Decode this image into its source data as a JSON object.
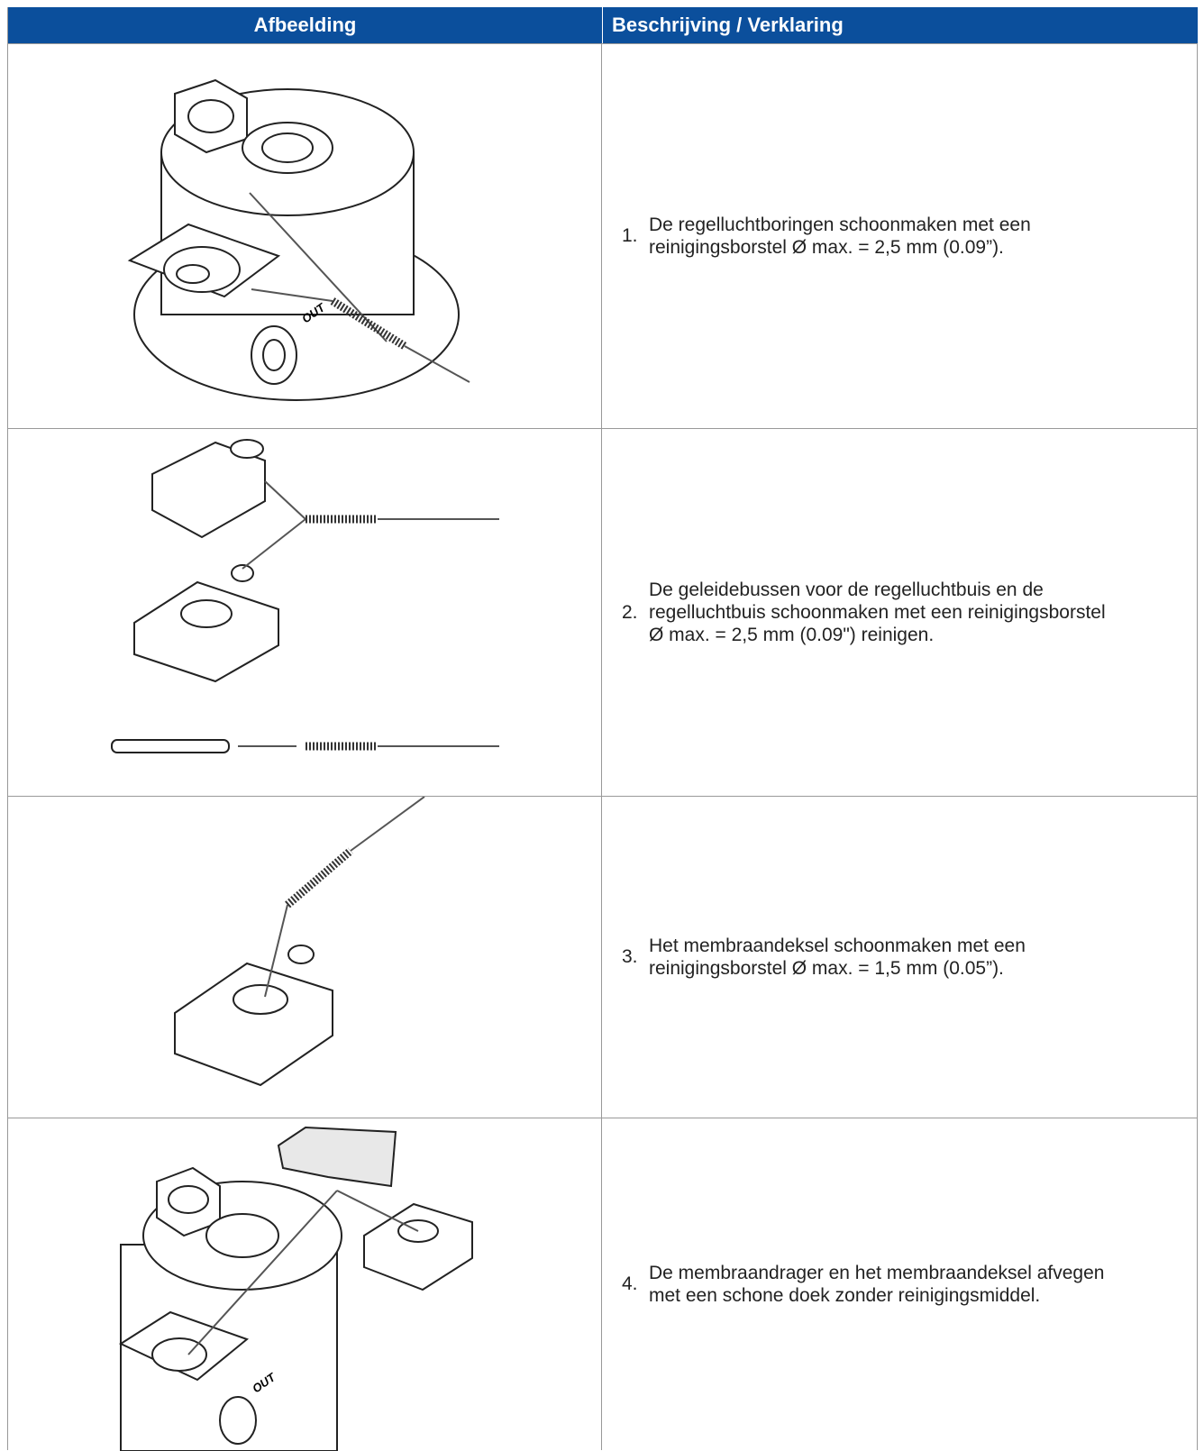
{
  "table": {
    "header": [
      "Afbeelding",
      "Beschrijving / Verklaring"
    ],
    "rows": [
      {
        "image_label": "OUT",
        "number": "1.",
        "lines": [
          "De regelluchtboringen schoonmaken met een",
          "reinigingsborstel Ø max. = 2,5 mm (0.09”)."
        ]
      },
      {
        "number": "2.",
        "lines": [
          "De geleidebussen voor de regelluchtbuis en de",
          "regelluchtbuis schoonmaken met een reinigingsborstel",
          "Ø max. = 2,5 mm (0.09\") reinigen."
        ]
      },
      {
        "number": "3.",
        "lines": [
          "Het membraandeksel schoonmaken met een",
          "reinigingsborstel Ø max. = 1,5 mm (0.05”)."
        ]
      },
      {
        "image_label": "OUT",
        "number": "4.",
        "lines": [
          "De membraandrager en het membraandeksel afvegen",
          "met een schone doek zonder reinigingsmiddel."
        ]
      }
    ]
  }
}
